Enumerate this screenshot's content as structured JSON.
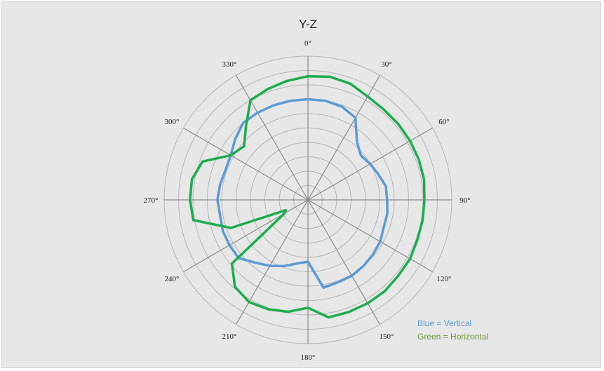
{
  "chart_data": {
    "type": "radar",
    "title": "Y-Z",
    "angle_labels": [
      "0°",
      "30°",
      "60°",
      "90°",
      "120°",
      "150°",
      "180°",
      "210°",
      "240°",
      "270°",
      "300°",
      "330°"
    ],
    "radial_rings": 10,
    "rlim": [
      0,
      10
    ],
    "grid": true,
    "legend_position": "bottom-right",
    "series": [
      {
        "name": "Blue = Vertical",
        "color": "#5b9bd5",
        "angles": [
          0,
          10,
          20,
          30,
          40,
          50,
          60,
          70,
          80,
          90,
          100,
          110,
          120,
          130,
          140,
          150,
          160,
          170,
          180,
          190,
          200,
          210,
          220,
          230,
          240,
          250,
          260,
          270,
          280,
          290,
          300,
          310,
          320,
          330,
          340,
          350
        ],
        "values": [
          7.0,
          7.0,
          6.9,
          6.6,
          5.3,
          4.8,
          5.0,
          5.2,
          5.5,
          5.5,
          5.6,
          5.6,
          5.8,
          5.9,
          6.0,
          6.1,
          6.1,
          6.2,
          4.3,
          4.5,
          4.9,
          5.3,
          5.7,
          6.3,
          6.3,
          6.3,
          6.2,
          6.3,
          6.2,
          6.1,
          6.2,
          6.6,
          7.0,
          7.0,
          7.0,
          7.0
        ]
      },
      {
        "name": "Green = Horizontal",
        "color": "#1aae4e",
        "angles": [
          0,
          10,
          20,
          30,
          40,
          50,
          60,
          70,
          80,
          90,
          100,
          110,
          120,
          130,
          140,
          150,
          160,
          170,
          180,
          190,
          200,
          210,
          220,
          230,
          240,
          245,
          250,
          260,
          270,
          280,
          290,
          300,
          310,
          320,
          330,
          340,
          350
        ],
        "values": [
          8.6,
          8.7,
          8.6,
          8.3,
          8.2,
          8.2,
          8.2,
          8.2,
          8.2,
          8.1,
          8.1,
          8.1,
          8.2,
          8.2,
          8.3,
          8.3,
          8.3,
          8.3,
          7.5,
          7.9,
          8.1,
          8.2,
          7.9,
          6.9,
          1.9,
          1.7,
          5.7,
          8.1,
          8.2,
          8.2,
          7.8,
          6.2,
          5.8,
          6.7,
          8.0,
          8.2,
          8.4
        ]
      }
    ]
  }
}
